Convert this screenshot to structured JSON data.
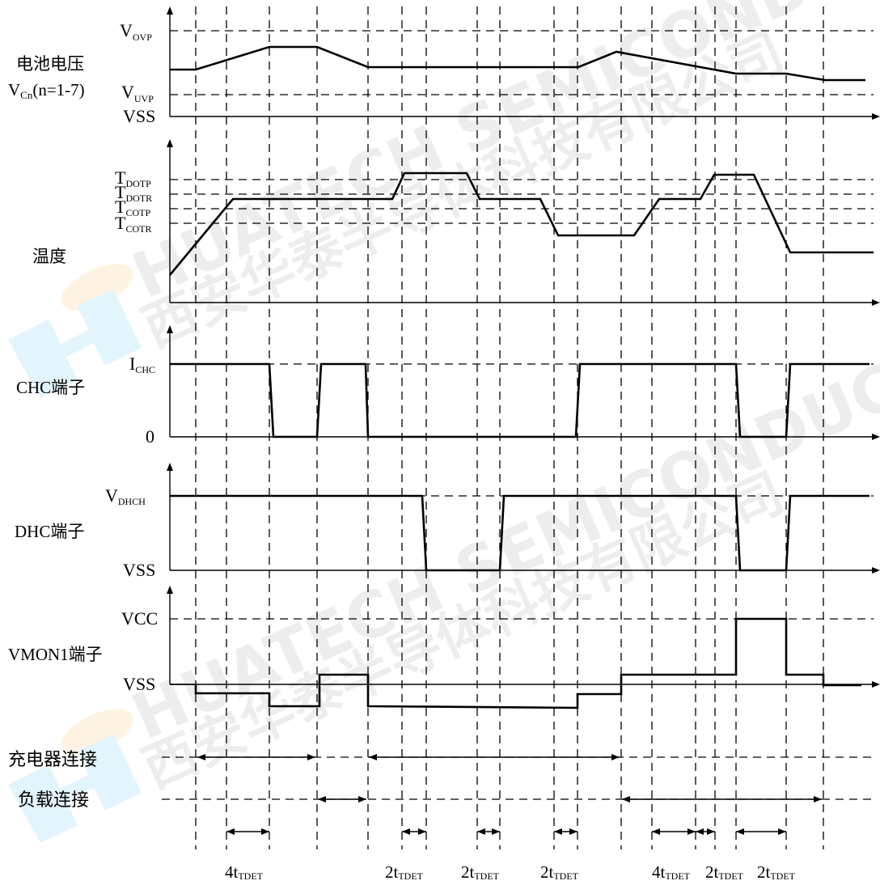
{
  "watermark": {
    "line_en": "HUATECH SEMICONDUCTOR INC",
    "line_cn": "西安华泰半导体科技有限公司",
    "logo_colors": [
      "#47b8ec",
      "#f5b24a"
    ]
  },
  "panels": [
    {
      "id": "battery",
      "title": [
        "电池电压",
        "Vcn(n=1-7)"
      ],
      "title_rich": {
        "line1": "电池电压",
        "v": "V",
        "sub": "Cn",
        "rest": "(n=1-7)"
      },
      "levels": [
        {
          "main": "V",
          "sub": "OVP"
        },
        {
          "main": "V",
          "sub": "UVP"
        },
        {
          "main": "VSS",
          "sub": ""
        }
      ]
    },
    {
      "id": "temperature",
      "title": [
        "温度"
      ],
      "levels": [
        {
          "main": "T",
          "sub": "DOTP"
        },
        {
          "main": "T",
          "sub": "DOTR"
        },
        {
          "main": "T",
          "sub": "COTP"
        },
        {
          "main": "T",
          "sub": "COTR"
        }
      ]
    },
    {
      "id": "chc",
      "title": [
        "CHC端子"
      ],
      "levels": [
        {
          "main": "I",
          "sub": "CHC"
        },
        {
          "main": "0",
          "sub": ""
        }
      ]
    },
    {
      "id": "dhc",
      "title": [
        "DHC端子"
      ],
      "levels": [
        {
          "main": "V",
          "sub": "DHCH"
        },
        {
          "main": "VSS",
          "sub": ""
        }
      ]
    },
    {
      "id": "vmon1",
      "title": [
        "VMON1端子"
      ],
      "levels": [
        {
          "main": "VCC",
          "sub": ""
        },
        {
          "main": "VSS",
          "sub": ""
        }
      ]
    }
  ],
  "connections": {
    "charger_label": "充电器连接",
    "load_label": "负载连接"
  },
  "durations": [
    {
      "prefix": "4t",
      "sub": "TDET"
    },
    {
      "prefix": "2t",
      "sub": "TDET"
    },
    {
      "prefix": "2t",
      "sub": "TDET"
    },
    {
      "prefix": "2t",
      "sub": "TDET"
    },
    {
      "prefix": "4t",
      "sub": "TDET"
    },
    {
      "prefix": "2t",
      "sub": "TDET"
    },
    {
      "prefix": "2t",
      "sub": "TDET"
    }
  ]
}
